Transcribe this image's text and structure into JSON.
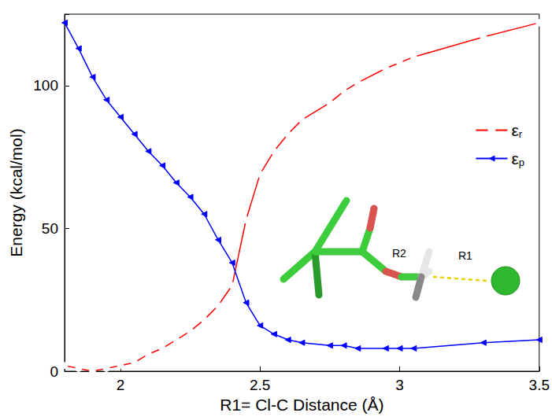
{
  "chart_data": {
    "type": "line",
    "x_label": "R1= Cl-C Distance (Å)",
    "y_label": "Energy (kcal/mol)",
    "x": [
      1.8,
      1.85,
      1.9,
      1.95,
      2.0,
      2.05,
      2.1,
      2.15,
      2.2,
      2.25,
      2.3,
      2.35,
      2.4,
      2.45,
      2.5,
      2.55,
      2.6,
      2.65,
      2.75,
      2.8,
      2.85,
      2.95,
      3.0,
      3.05,
      3.3,
      3.5
    ],
    "series": [
      {
        "name": "εr",
        "color": "#ff0000",
        "marker": "circle",
        "values": [
          2,
          1,
          0,
          1,
          2,
          3,
          6,
          8,
          11,
          14,
          18,
          23,
          30,
          53,
          69,
          77,
          83,
          88,
          94,
          98,
          101,
          106,
          108,
          110,
          117,
          122
        ]
      },
      {
        "name": "εp",
        "color": "#0000ff",
        "marker": "triangle-left",
        "values": [
          122,
          113,
          103,
          95,
          89,
          83,
          77,
          72,
          66,
          61,
          55,
          46,
          38,
          24,
          16,
          13,
          11,
          10,
          9,
          9,
          8,
          8,
          8,
          8,
          10,
          11
        ]
      }
    ],
    "annotations": [
      "R2",
      "R1"
    ],
    "xlim": [
      1.8,
      3.5
    ],
    "xticks": [
      2,
      2.5,
      3,
      3.5
    ],
    "ylim": [
      0,
      125
    ],
    "yticks": [
      0,
      50,
      100
    ],
    "legend": "right",
    "grid": false
  }
}
